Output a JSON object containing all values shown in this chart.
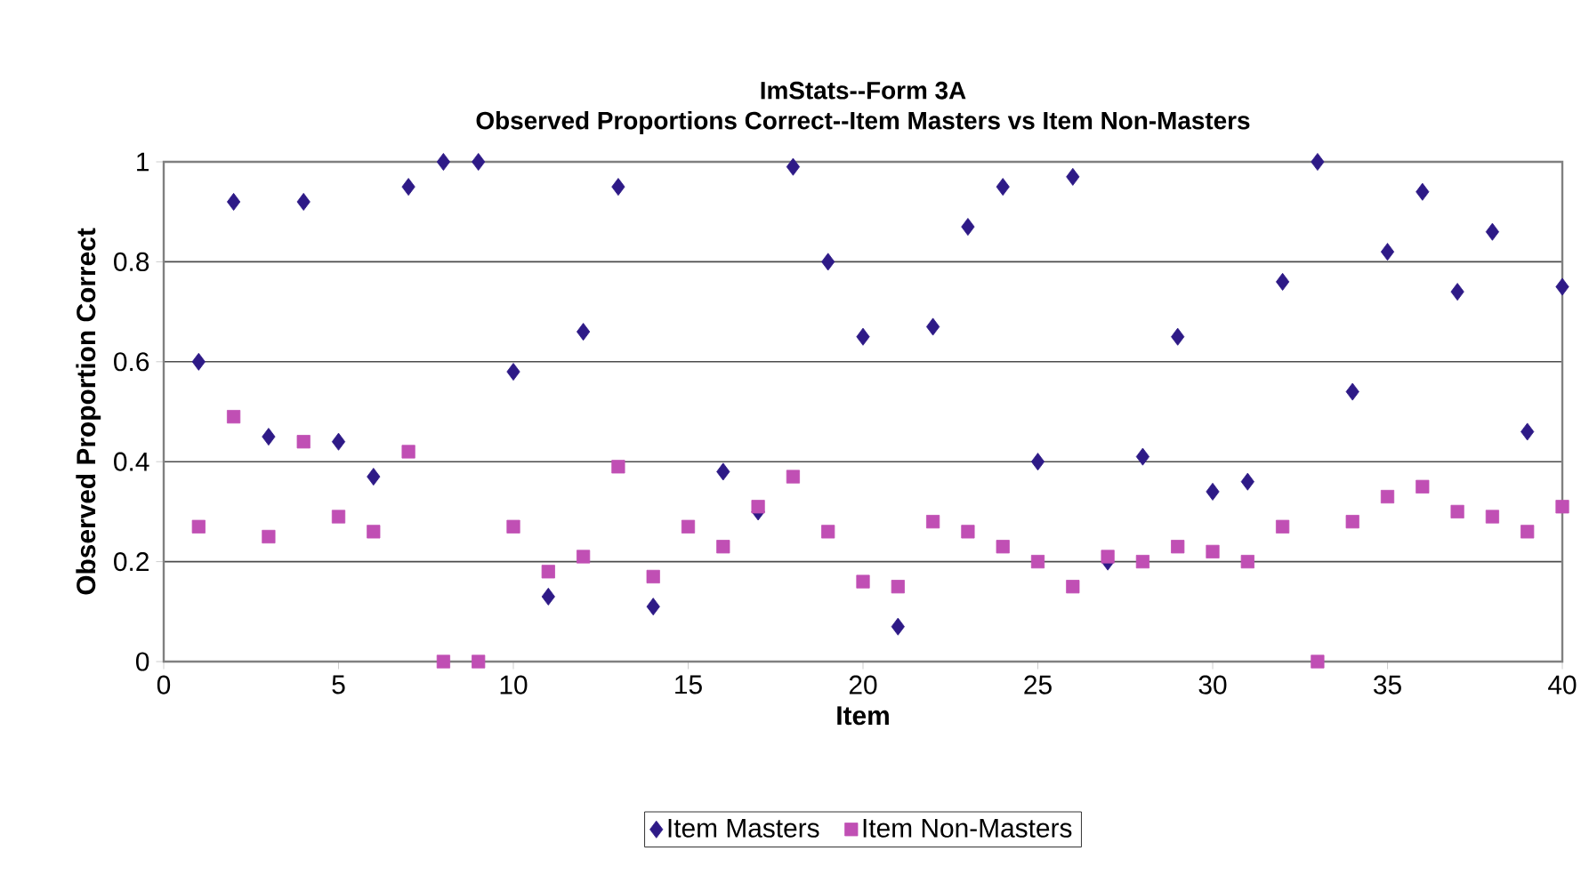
{
  "chart_data": {
    "type": "scatter",
    "title": "ImStats--Form 3A",
    "subtitle": "Observed Proportions Correct--Item Masters vs Item Non-Masters",
    "xlabel": "Item",
    "ylabel": "Observed Proportion Correct",
    "x": [
      1,
      2,
      3,
      4,
      5,
      6,
      7,
      8,
      9,
      10,
      11,
      12,
      13,
      14,
      15,
      16,
      17,
      18,
      19,
      20,
      21,
      22,
      23,
      24,
      25,
      26,
      27,
      28,
      29,
      30,
      31,
      32,
      33,
      34,
      35,
      36,
      37,
      38,
      39,
      40
    ],
    "series": [
      {
        "name": "Item Masters",
        "color": "#2e1a87",
        "marker": "diamond",
        "values": [
          0.6,
          0.92,
          0.45,
          0.92,
          0.44,
          0.37,
          0.95,
          1.0,
          1.0,
          0.58,
          0.13,
          0.66,
          0.95,
          0.11,
          null,
          0.38,
          0.3,
          0.99,
          0.8,
          0.65,
          0.07,
          0.67,
          0.87,
          0.95,
          0.4,
          0.97,
          0.2,
          0.41,
          0.65,
          0.34,
          0.36,
          0.76,
          1.0,
          0.54,
          0.82,
          0.94,
          0.74,
          0.86,
          0.46,
          0.75
        ]
      },
      {
        "name": "Item Non-Masters",
        "color": "#c04fb4",
        "marker": "square",
        "values": [
          0.27,
          0.49,
          0.25,
          0.44,
          0.29,
          0.26,
          0.42,
          0,
          0,
          0.27,
          0.18,
          0.21,
          0.39,
          0.17,
          0.27,
          0.23,
          0.31,
          0.37,
          0.26,
          0.16,
          0.15,
          0.28,
          0.26,
          0.23,
          0.2,
          0.15,
          0.21,
          0.2,
          0.23,
          0.22,
          0.2,
          0.27,
          0,
          0.28,
          0.33,
          0.35,
          0.3,
          0.29,
          0.26,
          0.31
        ]
      }
    ],
    "xlim": [
      0,
      40
    ],
    "ylim": [
      0,
      1
    ],
    "xticks": [
      0,
      5,
      10,
      15,
      20,
      25,
      30,
      35,
      40
    ],
    "yticks": [
      0,
      0.2,
      0.4,
      0.6,
      0.8,
      1
    ],
    "grid": "y",
    "legend": "bottom"
  }
}
